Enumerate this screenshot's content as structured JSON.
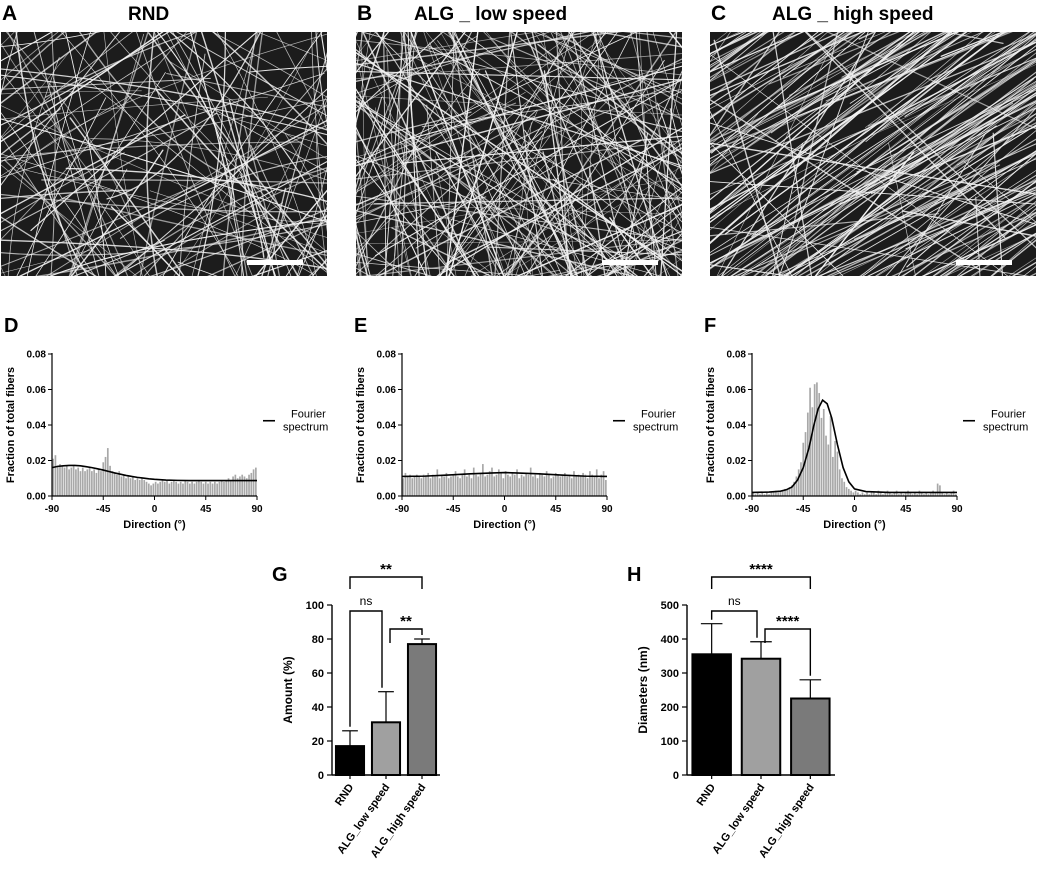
{
  "top_panels": [
    {
      "letter": "A",
      "title": "RND"
    },
    {
      "letter": "B",
      "title": "ALG _ low speed"
    },
    {
      "letter": "C",
      "title": "ALG _ high speed"
    }
  ],
  "colors": {
    "bar_black": "#000000",
    "bar_light": "#a0a0a0",
    "bar_mid": "#7a7a7a",
    "hist_bar": "#a8a8a8",
    "fiber": "#f2f2f2",
    "background": "#1c1c1c"
  },
  "chart_data": [
    {
      "id": "D",
      "letter": "D",
      "type": "bar",
      "xlabel": "Direction (°)",
      "ylabel": "Fraction of total fibers",
      "xlim": [
        -90,
        90
      ],
      "ylim": [
        0,
        0.08
      ],
      "xticks": [
        "-90",
        "-45",
        "0",
        "45",
        "90"
      ],
      "yticks": [
        "0.00",
        "0.02",
        "0.04",
        "0.06",
        "0.08"
      ],
      "legend": {
        "entry": [
          "Fourier",
          "spectrum"
        ],
        "placement": "right"
      },
      "x": [
        -89,
        -87,
        -85,
        -83,
        -81,
        -79,
        -77,
        -75,
        -73,
        -71,
        -69,
        -67,
        -65,
        -63,
        -61,
        -59,
        -57,
        -55,
        -53,
        -51,
        -49,
        -47,
        -45,
        -43,
        -41,
        -39,
        -37,
        -35,
        -33,
        -31,
        -29,
        -27,
        -25,
        -23,
        -21,
        -19,
        -17,
        -15,
        -13,
        -11,
        -9,
        -7,
        -5,
        -3,
        -1,
        1,
        3,
        5,
        7,
        9,
        11,
        13,
        15,
        17,
        19,
        21,
        23,
        25,
        27,
        29,
        31,
        33,
        35,
        37,
        39,
        41,
        43,
        45,
        47,
        49,
        51,
        53,
        55,
        57,
        59,
        61,
        63,
        65,
        67,
        69,
        71,
        73,
        75,
        77,
        79,
        81,
        83,
        85,
        87,
        89
      ],
      "values": [
        0.021,
        0.023,
        0.017,
        0.018,
        0.017,
        0.016,
        0.017,
        0.015,
        0.016,
        0.017,
        0.015,
        0.016,
        0.014,
        0.016,
        0.014,
        0.015,
        0.016,
        0.014,
        0.015,
        0.013,
        0.015,
        0.014,
        0.019,
        0.022,
        0.027,
        0.017,
        0.014,
        0.013,
        0.012,
        0.014,
        0.011,
        0.012,
        0.01,
        0.011,
        0.01,
        0.011,
        0.009,
        0.01,
        0.009,
        0.01,
        0.009,
        0.008,
        0.007,
        0.006,
        0.007,
        0.008,
        0.007,
        0.008,
        0.009,
        0.008,
        0.009,
        0.007,
        0.008,
        0.009,
        0.008,
        0.007,
        0.008,
        0.007,
        0.009,
        0.008,
        0.007,
        0.008,
        0.007,
        0.008,
        0.009,
        0.008,
        0.007,
        0.008,
        0.007,
        0.008,
        0.007,
        0.008,
        0.007,
        0.008,
        0.009,
        0.008,
        0.009,
        0.01,
        0.009,
        0.011,
        0.012,
        0.01,
        0.011,
        0.012,
        0.011,
        0.01,
        0.012,
        0.013,
        0.015,
        0.016
      ],
      "curve": {
        "x": [
          -90,
          -85,
          -80,
          -75,
          -70,
          -65,
          -60,
          -55,
          -50,
          -45,
          -40,
          -35,
          -30,
          -25,
          -20,
          -15,
          -10,
          -5,
          0,
          5,
          10,
          20,
          30,
          40,
          50,
          60,
          70,
          80,
          90
        ],
        "y": [
          0.016,
          0.0167,
          0.017,
          0.0172,
          0.0172,
          0.017,
          0.0165,
          0.016,
          0.0153,
          0.0146,
          0.0138,
          0.013,
          0.0123,
          0.0116,
          0.011,
          0.0105,
          0.0101,
          0.0097,
          0.0094,
          0.0092,
          0.009,
          0.0088,
          0.0087,
          0.0087,
          0.0087,
          0.0087,
          0.0087,
          0.0087,
          0.0087
        ]
      }
    },
    {
      "id": "E",
      "letter": "E",
      "type": "bar",
      "xlabel": "Direction (°)",
      "ylabel": "Fraction of total fibers",
      "xlim": [
        -90,
        90
      ],
      "ylim": [
        0,
        0.08
      ],
      "xticks": [
        "-90",
        "-45",
        "0",
        "45",
        "90"
      ],
      "yticks": [
        "0.00",
        "0.02",
        "0.04",
        "0.06",
        "0.08"
      ],
      "legend": {
        "entry": [
          "Fourier",
          "spectrum"
        ],
        "placement": "right"
      },
      "x": [
        -89,
        -87,
        -85,
        -83,
        -81,
        -79,
        -77,
        -75,
        -73,
        -71,
        -69,
        -67,
        -65,
        -63,
        -61,
        -59,
        -57,
        -55,
        -53,
        -51,
        -49,
        -47,
        -45,
        -43,
        -41,
        -39,
        -37,
        -35,
        -33,
        -31,
        -29,
        -27,
        -25,
        -23,
        -21,
        -19,
        -17,
        -15,
        -13,
        -11,
        -9,
        -7,
        -5,
        -3,
        -1,
        1,
        3,
        5,
        7,
        9,
        11,
        13,
        15,
        17,
        19,
        21,
        23,
        25,
        27,
        29,
        31,
        33,
        35,
        37,
        39,
        41,
        43,
        45,
        47,
        49,
        51,
        53,
        55,
        57,
        59,
        61,
        63,
        65,
        67,
        69,
        71,
        73,
        75,
        77,
        79,
        81,
        83,
        85,
        87,
        89
      ],
      "values": [
        0.01,
        0.013,
        0.011,
        0.012,
        0.01,
        0.011,
        0.012,
        0.011,
        0.01,
        0.012,
        0.011,
        0.013,
        0.01,
        0.012,
        0.011,
        0.015,
        0.01,
        0.012,
        0.011,
        0.013,
        0.01,
        0.011,
        0.012,
        0.014,
        0.011,
        0.01,
        0.012,
        0.015,
        0.011,
        0.012,
        0.01,
        0.016,
        0.012,
        0.011,
        0.013,
        0.018,
        0.011,
        0.012,
        0.014,
        0.016,
        0.011,
        0.012,
        0.015,
        0.013,
        0.01,
        0.014,
        0.012,
        0.011,
        0.013,
        0.012,
        0.015,
        0.01,
        0.012,
        0.011,
        0.013,
        0.012,
        0.016,
        0.011,
        0.012,
        0.01,
        0.013,
        0.012,
        0.011,
        0.014,
        0.012,
        0.01,
        0.011,
        0.013,
        0.012,
        0.011,
        0.012,
        0.013,
        0.011,
        0.012,
        0.01,
        0.014,
        0.011,
        0.012,
        0.011,
        0.013,
        0.012,
        0.01,
        0.014,
        0.012,
        0.011,
        0.015,
        0.01,
        0.012,
        0.014,
        0.009
      ],
      "curve": {
        "x": [
          -90,
          -70,
          -50,
          -30,
          -10,
          0,
          10,
          30,
          50,
          70,
          90
        ],
        "y": [
          0.011,
          0.0112,
          0.0118,
          0.0125,
          0.013,
          0.0132,
          0.013,
          0.0125,
          0.0118,
          0.0112,
          0.011
        ]
      }
    },
    {
      "id": "F",
      "letter": "F",
      "type": "bar",
      "xlabel": "Direction (°)",
      "ylabel": "Fraction of total fibers",
      "xlim": [
        -90,
        90
      ],
      "ylim": [
        0,
        0.08
      ],
      "xticks": [
        "-90",
        "-45",
        "0",
        "45",
        "90"
      ],
      "yticks": [
        "0.00",
        "0.02",
        "0.04",
        "0.06",
        "0.08"
      ],
      "legend": {
        "entry": [
          "Fourier",
          "spectrum"
        ],
        "placement": "right"
      },
      "x": [
        -89,
        -87,
        -85,
        -83,
        -81,
        -79,
        -77,
        -75,
        -73,
        -71,
        -69,
        -67,
        -65,
        -63,
        -61,
        -59,
        -57,
        -55,
        -53,
        -51,
        -49,
        -47,
        -45,
        -43,
        -41,
        -39,
        -37,
        -35,
        -33,
        -31,
        -29,
        -27,
        -25,
        -23,
        -21,
        -19,
        -17,
        -15,
        -13,
        -11,
        -9,
        -7,
        -5,
        -3,
        -1,
        1,
        3,
        5,
        7,
        9,
        11,
        13,
        15,
        17,
        19,
        21,
        23,
        25,
        27,
        29,
        31,
        33,
        35,
        37,
        39,
        41,
        43,
        45,
        47,
        49,
        51,
        53,
        55,
        57,
        59,
        61,
        63,
        65,
        67,
        69,
        71,
        73,
        75,
        77,
        79,
        81,
        83,
        85,
        87,
        89
      ],
      "values": [
        0.002,
        0.001,
        0.002,
        0.001,
        0.002,
        0.001,
        0.002,
        0.001,
        0.002,
        0.002,
        0.003,
        0.002,
        0.003,
        0.003,
        0.004,
        0.004,
        0.005,
        0.006,
        0.008,
        0.011,
        0.015,
        0.019,
        0.03,
        0.036,
        0.047,
        0.061,
        0.05,
        0.063,
        0.064,
        0.058,
        0.044,
        0.049,
        0.034,
        0.029,
        0.045,
        0.022,
        0.031,
        0.025,
        0.015,
        0.01,
        0.008,
        0.005,
        0.004,
        0.003,
        0.002,
        0.003,
        0.002,
        0.001,
        0.002,
        0.001,
        0.002,
        0.001,
        0.002,
        0.002,
        0.001,
        0.003,
        0.002,
        0.001,
        0.002,
        0.003,
        0.002,
        0.001,
        0.002,
        0.003,
        0.001,
        0.002,
        0.001,
        0.002,
        0.003,
        0.002,
        0.001,
        0.002,
        0.001,
        0.003,
        0.002,
        0.001,
        0.002,
        0.001,
        0.002,
        0.003,
        0.002,
        0.007,
        0.006,
        0.002,
        0.001,
        0.002,
        0.001,
        0.002,
        0.003,
        0.001
      ],
      "curve": {
        "x": [
          -90,
          -75,
          -65,
          -60,
          -55,
          -50,
          -45,
          -40,
          -36,
          -32,
          -28,
          -24,
          -20,
          -15,
          -10,
          -5,
          0,
          10,
          30,
          60,
          90
        ],
        "y": [
          0.002,
          0.0022,
          0.0027,
          0.0035,
          0.005,
          0.009,
          0.016,
          0.027,
          0.039,
          0.049,
          0.054,
          0.052,
          0.044,
          0.029,
          0.016,
          0.008,
          0.004,
          0.0025,
          0.002,
          0.002,
          0.002
        ]
      }
    },
    {
      "id": "G",
      "letter": "G",
      "type": "bar",
      "ylabel": "Amount (%)",
      "xlabel": "",
      "categories": [
        "RND",
        "ALG_low speed",
        "ALG_high speed"
      ],
      "values": [
        17,
        31,
        77
      ],
      "errors": [
        9,
        18,
        3
      ],
      "ylim": [
        0,
        100
      ],
      "yticks": [
        "0",
        "20",
        "40",
        "60",
        "80",
        "100"
      ],
      "significance": [
        {
          "from": 0,
          "to": 2,
          "label": "**",
          "level": 0
        },
        {
          "from": 0,
          "to": 1,
          "label": "ns",
          "level": 1
        },
        {
          "from": 1,
          "to": 2,
          "label": "**",
          "level": 2
        }
      ]
    },
    {
      "id": "H",
      "letter": "H",
      "type": "bar",
      "ylabel": "Diameters (nm)",
      "xlabel": "",
      "categories": [
        "RND",
        "ALG_low speed",
        "ALG_high speed"
      ],
      "values": [
        355,
        342,
        225
      ],
      "errors": [
        90,
        50,
        55
      ],
      "ylim": [
        0,
        500
      ],
      "yticks": [
        "0",
        "100",
        "200",
        "300",
        "400",
        "500"
      ],
      "significance": [
        {
          "from": 0,
          "to": 2,
          "label": "****",
          "level": 0
        },
        {
          "from": 0,
          "to": 1,
          "label": "ns",
          "level": 1
        },
        {
          "from": 1,
          "to": 2,
          "label": "****",
          "level": 2
        }
      ]
    }
  ]
}
